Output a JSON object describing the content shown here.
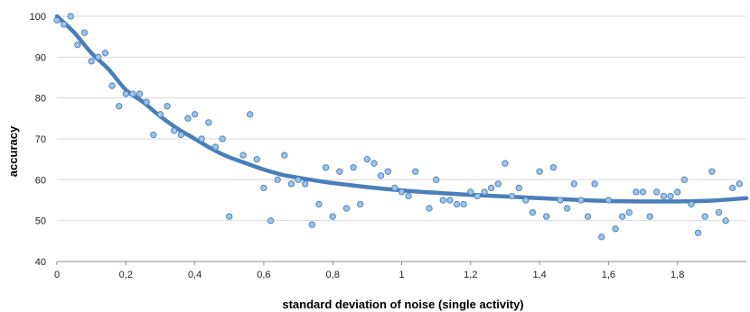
{
  "chart_data": {
    "type": "scatter",
    "title": "",
    "xlabel": "standard deviation of noise (single activity)",
    "ylabel": "accuracy",
    "xlim": [
      0,
      2
    ],
    "ylim": [
      40,
      100
    ],
    "x_ticks": [
      "0",
      "0,2",
      "0,4",
      "0,6",
      "0,8",
      "1",
      "1,2",
      "1,4",
      "1,6",
      "1,8"
    ],
    "x_tick_values": [
      0,
      0.2,
      0.4,
      0.6,
      0.8,
      1.0,
      1.2,
      1.4,
      1.6,
      1.8
    ],
    "y_ticks": [
      "40",
      "50",
      "60",
      "70",
      "80",
      "90",
      "100"
    ],
    "y_tick_values": [
      40,
      50,
      60,
      70,
      80,
      90,
      100
    ],
    "grid": "horizontal",
    "legend": "none",
    "colors": {
      "points": "#9dc3e6",
      "point_edge": "#4a7ebb",
      "trend": "#4a7ebb"
    },
    "series": [
      {
        "marker": "circle",
        "points": [
          [
            0.0,
            99
          ],
          [
            0.02,
            98
          ],
          [
            0.04,
            100
          ],
          [
            0.06,
            93
          ],
          [
            0.08,
            96
          ],
          [
            0.1,
            89
          ],
          [
            0.12,
            90
          ],
          [
            0.14,
            91
          ],
          [
            0.16,
            83
          ],
          [
            0.18,
            78
          ],
          [
            0.2,
            81
          ],
          [
            0.22,
            81
          ],
          [
            0.24,
            81
          ],
          [
            0.26,
            79
          ],
          [
            0.28,
            71
          ],
          [
            0.3,
            76
          ],
          [
            0.32,
            78
          ],
          [
            0.34,
            72
          ],
          [
            0.36,
            71
          ],
          [
            0.38,
            75
          ],
          [
            0.4,
            76
          ],
          [
            0.42,
            70
          ],
          [
            0.44,
            74
          ],
          [
            0.46,
            68
          ],
          [
            0.48,
            70
          ],
          [
            0.5,
            51
          ],
          [
            0.54,
            66
          ],
          [
            0.56,
            76
          ],
          [
            0.58,
            65
          ],
          [
            0.6,
            58
          ],
          [
            0.62,
            50
          ],
          [
            0.64,
            60
          ],
          [
            0.66,
            66
          ],
          [
            0.68,
            59
          ],
          [
            0.7,
            60
          ],
          [
            0.72,
            59
          ],
          [
            0.74,
            49
          ],
          [
            0.76,
            54
          ],
          [
            0.78,
            63
          ],
          [
            0.8,
            51
          ],
          [
            0.82,
            62
          ],
          [
            0.84,
            53
          ],
          [
            0.86,
            63
          ],
          [
            0.88,
            54
          ],
          [
            0.9,
            65
          ],
          [
            0.92,
            64
          ],
          [
            0.94,
            61
          ],
          [
            0.96,
            62
          ],
          [
            0.98,
            58
          ],
          [
            1.0,
            57
          ],
          [
            1.02,
            56
          ],
          [
            1.04,
            62
          ],
          [
            1.08,
            53
          ],
          [
            1.1,
            60
          ],
          [
            1.12,
            55
          ],
          [
            1.14,
            55
          ],
          [
            1.16,
            54
          ],
          [
            1.18,
            54
          ],
          [
            1.2,
            57
          ],
          [
            1.22,
            56
          ],
          [
            1.24,
            57
          ],
          [
            1.26,
            58
          ],
          [
            1.28,
            59
          ],
          [
            1.3,
            64
          ],
          [
            1.32,
            56
          ],
          [
            1.34,
            58
          ],
          [
            1.36,
            55
          ],
          [
            1.38,
            52
          ],
          [
            1.4,
            62
          ],
          [
            1.42,
            51
          ],
          [
            1.44,
            63
          ],
          [
            1.46,
            55
          ],
          [
            1.48,
            53
          ],
          [
            1.5,
            59
          ],
          [
            1.52,
            55
          ],
          [
            1.54,
            51
          ],
          [
            1.56,
            59
          ],
          [
            1.58,
            46
          ],
          [
            1.6,
            55
          ],
          [
            1.62,
            48
          ],
          [
            1.64,
            51
          ],
          [
            1.66,
            52
          ],
          [
            1.68,
            57
          ],
          [
            1.7,
            57
          ],
          [
            1.72,
            51
          ],
          [
            1.74,
            57
          ],
          [
            1.76,
            56
          ],
          [
            1.78,
            56
          ],
          [
            1.8,
            57
          ],
          [
            1.82,
            60
          ],
          [
            1.84,
            54
          ],
          [
            1.86,
            47
          ],
          [
            1.88,
            51
          ],
          [
            1.9,
            62
          ],
          [
            1.92,
            52
          ],
          [
            1.94,
            50
          ],
          [
            1.96,
            58
          ],
          [
            1.98,
            59
          ]
        ]
      }
    ],
    "trendline": {
      "type": "smooth",
      "points": [
        [
          0.0,
          100
        ],
        [
          0.05,
          96
        ],
        [
          0.1,
          91
        ],
        [
          0.15,
          87
        ],
        [
          0.2,
          82
        ],
        [
          0.25,
          79
        ],
        [
          0.3,
          75.5
        ],
        [
          0.35,
          72.5
        ],
        [
          0.4,
          70
        ],
        [
          0.45,
          67.5
        ],
        [
          0.5,
          65.5
        ],
        [
          0.55,
          64
        ],
        [
          0.6,
          62.5
        ],
        [
          0.65,
          61.3
        ],
        [
          0.7,
          60.5
        ],
        [
          0.75,
          59.8
        ],
        [
          0.8,
          59.2
        ],
        [
          0.9,
          58.2
        ],
        [
          1.0,
          57.4
        ],
        [
          1.1,
          56.8
        ],
        [
          1.2,
          56.3
        ],
        [
          1.3,
          55.9
        ],
        [
          1.4,
          55.5
        ],
        [
          1.5,
          55.1
        ],
        [
          1.6,
          54.8
        ],
        [
          1.7,
          54.7
        ],
        [
          1.8,
          54.7
        ],
        [
          1.9,
          54.9
        ],
        [
          2.0,
          55.5
        ]
      ]
    }
  }
}
